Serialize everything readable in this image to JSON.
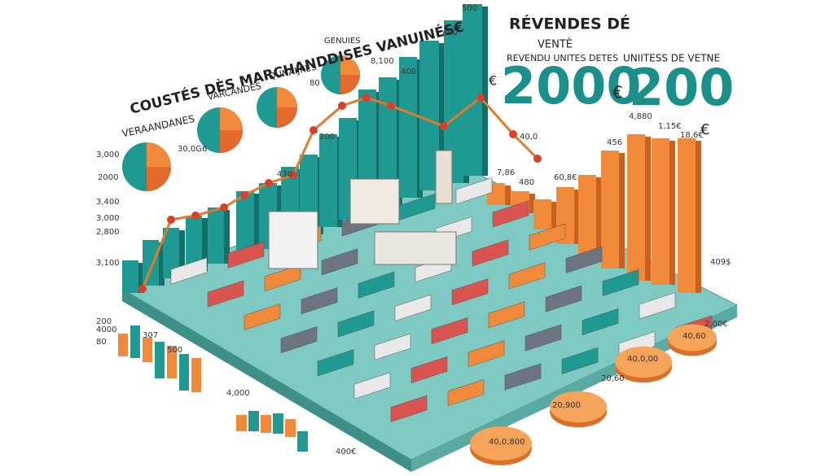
{
  "left_panel": {
    "title": "COUSTÉS DÈS MARCHANDDISES VANUINÉS€",
    "labels": [
      "VERAANDANES",
      "VARCANDES",
      "QUNAIJKES",
      "GENUIES"
    ]
  },
  "revenue_panel": {
    "title": "RÉVENDES DÉ",
    "subtitle": "VENTÈ",
    "caption": "REVENDU UNITES DETES",
    "currency": "€",
    "amount": "2000"
  },
  "units_panel": {
    "title": "UNIITESS DE VETNE",
    "currency": "€",
    "amount": "200",
    "suffix": "€"
  },
  "labels": [
    "500",
    "400",
    "8,100",
    "400",
    "80",
    "30,0G6",
    "3,000",
    "2000",
    "3,400",
    "3,000",
    "2,800",
    "3,100",
    "200",
    "4000",
    "80",
    "307",
    "500",
    "4,000",
    "400€",
    "40,0,800",
    "20,900",
    "40,0,00",
    "40,60",
    "2,00€",
    "20,60",
    "409$",
    "4,880",
    "1,15€",
    "18,6€",
    "456",
    "7,86",
    "480",
    "40,0",
    "60,8€",
    "430",
    "200"
  ]
}
